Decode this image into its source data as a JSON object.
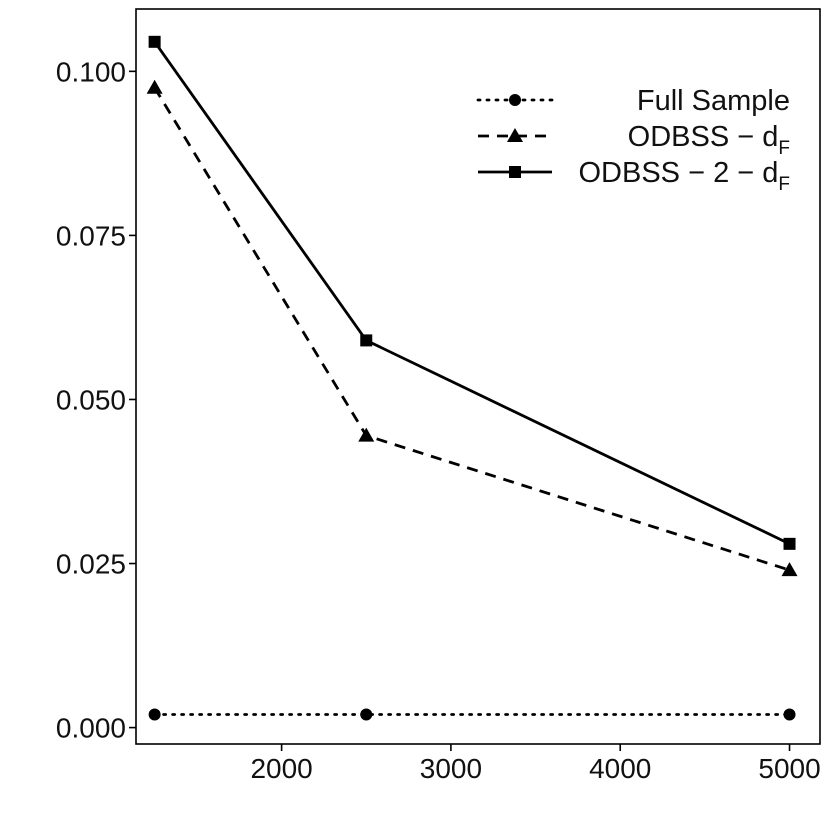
{
  "chart_data": {
    "type": "line",
    "title": "",
    "xlabel": "",
    "ylabel": "",
    "x": [
      1250,
      2500,
      5000
    ],
    "xlim": [
      1140,
      5180
    ],
    "ylim": [
      -0.0025,
      0.1095
    ],
    "xticks": [
      2000,
      3000,
      4000,
      5000
    ],
    "xtick_labels": [
      "2000",
      "3000",
      "4000",
      "5000"
    ],
    "yticks": [
      0.0,
      0.025,
      0.05,
      0.075,
      0.1
    ],
    "ytick_labels": [
      "0.000",
      "0.025",
      "0.050",
      "0.075",
      "0.100"
    ],
    "grid": false,
    "legend_position": "top-right",
    "series": [
      {
        "name": "Full Sample",
        "label_main": "Full Sample",
        "label_sub": "",
        "values": [
          0.002,
          0.002,
          0.002
        ],
        "line_style": "dotted",
        "marker": "circle"
      },
      {
        "name": "ODBSS − dF",
        "label_main": "ODBSS − d",
        "label_sub": "F",
        "values": [
          0.0975,
          0.0445,
          0.024
        ],
        "line_style": "dashed",
        "marker": "triangle"
      },
      {
        "name": "ODBSS − 2 − dF",
        "label_main": "ODBSS − 2 − d",
        "label_sub": "F",
        "values": [
          0.1045,
          0.059,
          0.028
        ],
        "line_style": "solid",
        "marker": "square"
      }
    ]
  }
}
